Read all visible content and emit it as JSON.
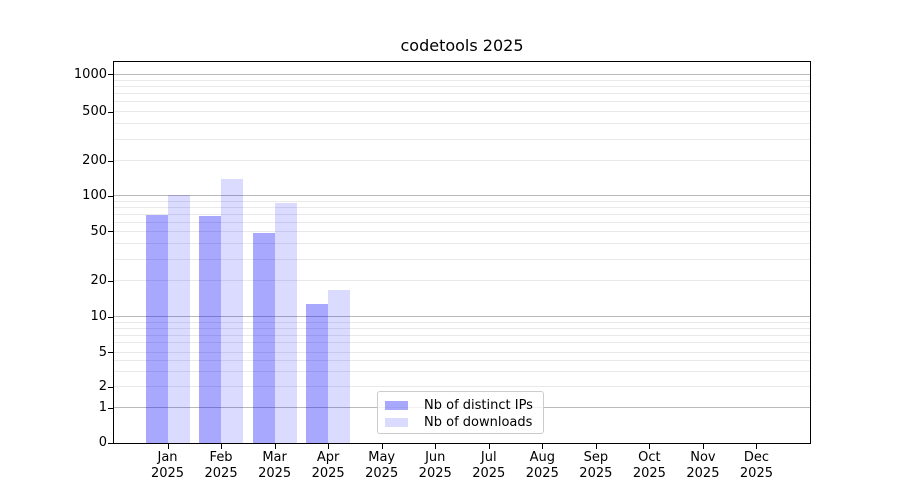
{
  "chart_data": {
    "type": "bar",
    "title": "codetools 2025",
    "categories": [
      "Jan 2025",
      "Feb 2025",
      "Mar 2025",
      "Apr 2025",
      "May 2025",
      "Jun 2025",
      "Jul 2025",
      "Aug 2025",
      "Sep 2025",
      "Oct 2025",
      "Nov 2025",
      "Dec 2025"
    ],
    "series": [
      {
        "name": "Nb of distinct IPs",
        "color_hex": "#a9a9fa",
        "color_css": "rgba(0,0,255,0.34)",
        "values": [
          70,
          68,
          49,
          13,
          null,
          null,
          null,
          null,
          null,
          null,
          null,
          null
        ]
      },
      {
        "name": "Nb of downloads",
        "color_hex": "#dbdbfa",
        "color_css": "rgba(0,0,255,0.14)",
        "values": [
          102,
          140,
          88,
          17,
          null,
          null,
          null,
          null,
          null,
          null,
          null,
          null
        ]
      }
    ],
    "yscale": "log-like",
    "ylim": [
      0,
      1000
    ],
    "yticks": [
      {
        "label": "0",
        "value": 0,
        "pos": 0.0
      },
      {
        "label": "1",
        "value": 1,
        "pos": 0.091
      },
      {
        "label": "2",
        "value": 2,
        "pos": 0.146
      },
      {
        "label": "5",
        "value": 5,
        "pos": 0.237
      },
      {
        "label": "10",
        "value": 10,
        "pos": 0.33
      },
      {
        "label": "20",
        "value": 20,
        "pos": 0.424
      },
      {
        "label": "50",
        "value": 50,
        "pos": 0.554
      },
      {
        "label": "100",
        "value": 100,
        "pos": 0.648
      },
      {
        "label": "200",
        "value": 200,
        "pos": 0.739
      },
      {
        "label": "500",
        "value": 500,
        "pos": 0.868
      },
      {
        "label": "1000",
        "value": 1000,
        "pos": 0.966
      }
    ],
    "grid": {
      "major_color": "#b9b9b9",
      "minor_color": "#e9e9e9",
      "grid_on": true
    },
    "legend": {
      "position": "bottom-center"
    }
  }
}
